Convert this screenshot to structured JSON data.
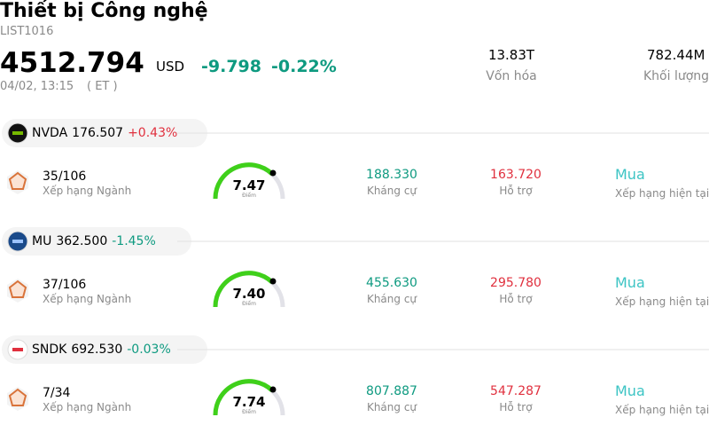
{
  "header": {
    "title": "Thiết bị Công nghệ",
    "code": "LIST1016",
    "price": "4512.794",
    "currency": "USD",
    "change": "-9.798",
    "change_pct": "-0.22%",
    "time": "04/02, 13:15",
    "timezone": "( ET )",
    "change_color": "#0e9a80",
    "stats": [
      {
        "value": "13.83T",
        "label": "Vốn hóa"
      },
      {
        "value": "782.44M",
        "label": "Khối lượng"
      }
    ]
  },
  "stocks": [
    {
      "ticker": "NVDA",
      "price": "176.507",
      "change": "+0.43%",
      "change_color": "#e0303e",
      "rank": "35/106",
      "rank_label": "Xếp hạng Ngành",
      "score": "7.47",
      "score_label": "Điểm",
      "resistance": "188.330",
      "resistance_label": "Kháng cự",
      "support": "163.720",
      "support_label": "Hỗ trợ",
      "rating": "Mua",
      "rating_label": "Xếp hạng hiện tại"
    },
    {
      "ticker": "MU",
      "price": "362.500",
      "change": "-1.45%",
      "change_color": "#0e9a80",
      "rank": "37/106",
      "rank_label": "Xếp hạng Ngành",
      "score": "7.40",
      "score_label": "Điểm",
      "resistance": "455.630",
      "resistance_label": "Kháng cự",
      "support": "295.780",
      "support_label": "Hỗ trợ",
      "rating": "Mua",
      "rating_label": "Xếp hạng hiện tại"
    },
    {
      "ticker": "SNDK",
      "price": "692.530",
      "change": "-0.03%",
      "change_color": "#0e9a80",
      "rank": "7/34",
      "rank_label": "Xếp hạng Ngành",
      "score": "7.74",
      "score_label": "Điểm",
      "resistance": "807.887",
      "resistance_label": "Kháng cự",
      "support": "547.287",
      "support_label": "Hỗ trợ",
      "rating": "Mua",
      "rating_label": "Xếp hạng hiện tại"
    }
  ]
}
